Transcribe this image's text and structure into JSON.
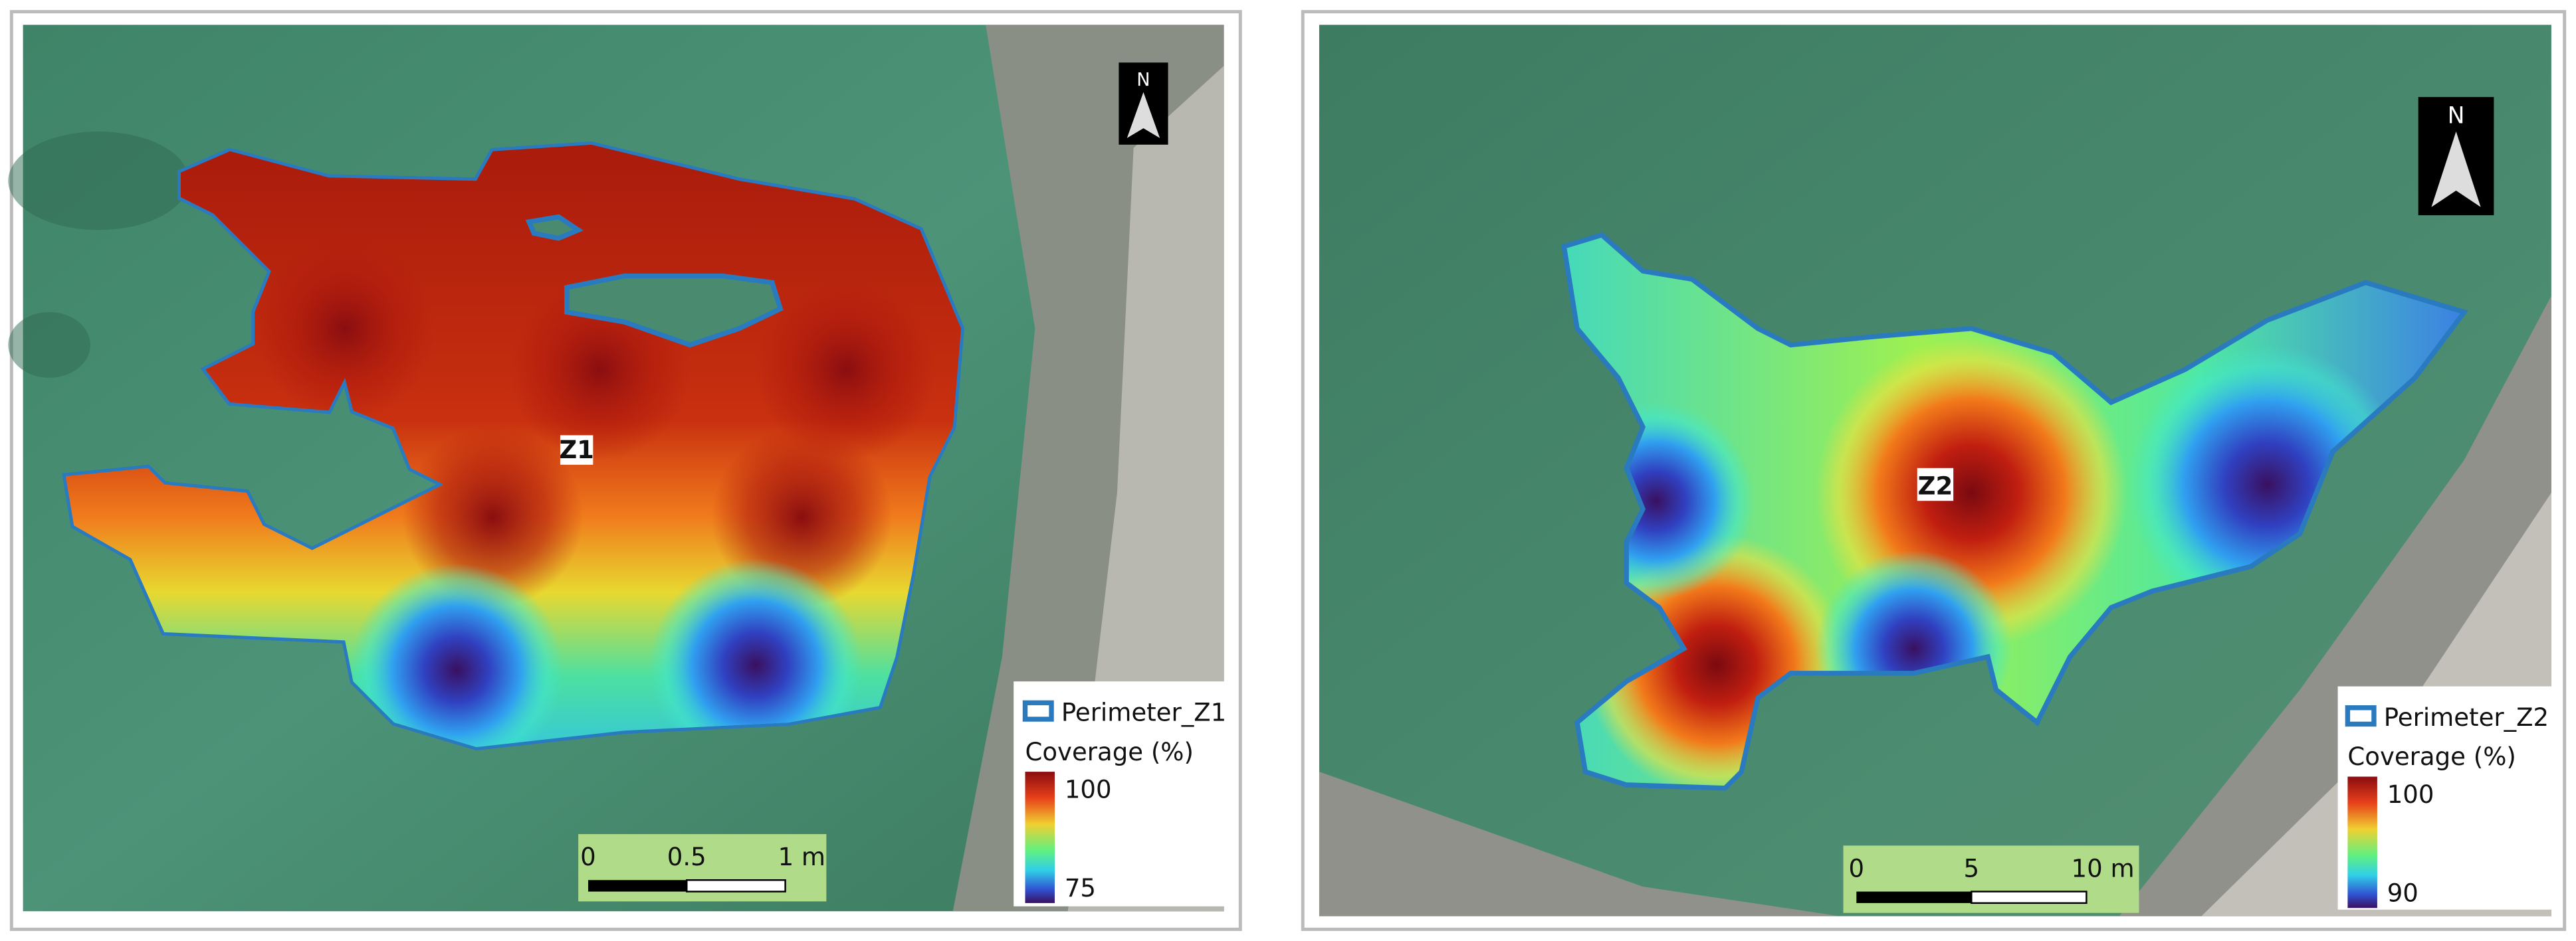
{
  "panels": [
    {
      "zone_label": "Z1",
      "north": "N",
      "legend": {
        "perimeter": "Perimeter_Z1",
        "title": "Coverage (%)",
        "max": "100",
        "min": "75"
      },
      "scalebar": [
        "0",
        "0.5",
        "1 m"
      ]
    },
    {
      "zone_label": "Z2",
      "north": "N",
      "legend": {
        "perimeter": "Perimeter_Z2",
        "title": "Coverage (%)",
        "max": "100",
        "min": "90"
      },
      "scalebar": [
        "0",
        "5",
        "10 m"
      ]
    }
  ]
}
